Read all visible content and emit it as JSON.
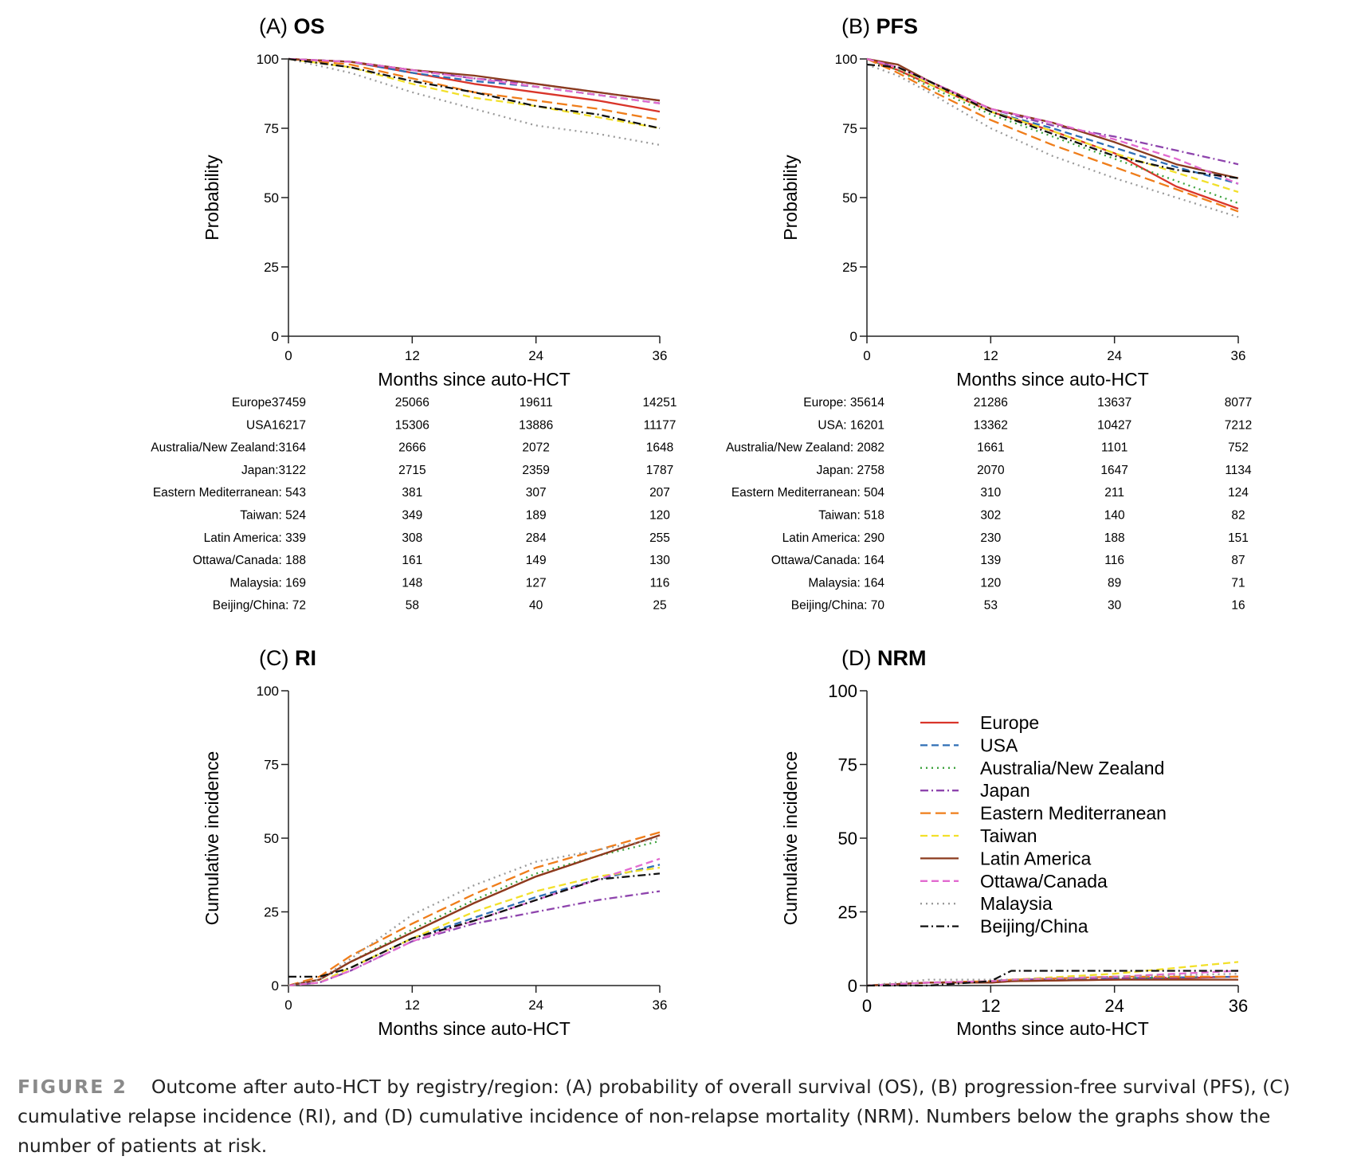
{
  "series_styles": [
    {
      "name": "Europe",
      "color": "#d9352a",
      "dash": ""
    },
    {
      "name": "USA",
      "color": "#2f6fb5",
      "dash": "9,5"
    },
    {
      "name": "Australia/New Zealand",
      "color": "#3ea33e",
      "dash": "2,5"
    },
    {
      "name": "Japan",
      "color": "#8e44ad",
      "dash": "10,4,2,4"
    },
    {
      "name": "Eastern Mediterranean",
      "color": "#ef7d1a",
      "dash": "13,6"
    },
    {
      "name": "Taiwan",
      "color": "#f2e02a",
      "dash": "9,5"
    },
    {
      "name": "Latin America",
      "color": "#8b3b1e",
      "dash": ""
    },
    {
      "name": "Ottawa/Canada",
      "color": "#e26ad0",
      "dash": "9,5"
    },
    {
      "name": "Malaysia",
      "color": "#9a9a9a",
      "dash": "2,5"
    },
    {
      "name": "Beijing/China",
      "color": "#111111",
      "dash": "10,4,2,4"
    }
  ],
  "chart_data": [
    {
      "panel": "A",
      "type": "line",
      "title_prefix": "(A)",
      "title": "OS",
      "xlabel": "Months since auto-HCT",
      "ylabel": "Probability",
      "xlim": [
        0,
        36
      ],
      "ylim": [
        0,
        100
      ],
      "xticks": [
        0,
        12,
        24,
        36
      ],
      "yticks": [
        0,
        25,
        50,
        75,
        100
      ],
      "x": [
        0,
        6,
        12,
        18,
        24,
        30,
        36
      ],
      "series": [
        {
          "name": "Europe",
          "values": [
            100,
            99,
            95,
            91,
            88,
            85,
            81
          ]
        },
        {
          "name": "USA",
          "values": [
            100,
            99,
            95,
            92,
            90,
            87,
            84
          ]
        },
        {
          "name": "Australia/New Zealand",
          "values": [
            100,
            99,
            96,
            93,
            90,
            87,
            84
          ]
        },
        {
          "name": "Japan",
          "values": [
            100,
            99,
            96,
            93,
            91,
            88,
            85
          ]
        },
        {
          "name": "Eastern Mediterranean",
          "values": [
            100,
            98,
            93,
            88,
            85,
            82,
            78
          ]
        },
        {
          "name": "Taiwan",
          "values": [
            100,
            97,
            91,
            86,
            83,
            79,
            75
          ]
        },
        {
          "name": "Latin America",
          "values": [
            100,
            99,
            96,
            94,
            91,
            88,
            85
          ]
        },
        {
          "name": "Ottawa/Canada",
          "values": [
            100,
            99,
            96,
            93,
            90,
            87,
            84
          ]
        },
        {
          "name": "Malaysia",
          "values": [
            100,
            95,
            88,
            82,
            76,
            73,
            69
          ]
        },
        {
          "name": "Beijing/China",
          "values": [
            100,
            97,
            92,
            88,
            83,
            80,
            75
          ]
        }
      ],
      "at_risk": {
        "labels": [
          "Europe37459",
          "USA16217",
          "Australia/New Zealand:3164",
          "Japan:3122",
          "Eastern Mediterranean: 543",
          "Taiwan: 524",
          "Latin America: 339",
          "Ottawa/Canada: 188",
          "Malaysia: 169",
          "Beijing/China:  72"
        ],
        "m12": [
          "25066",
          "15306",
          "2666",
          "2715",
          "381",
          "349",
          "308",
          "161",
          "148",
          "58"
        ],
        "m24": [
          "19611",
          "13886",
          "2072",
          "2359",
          "307",
          "189",
          "284",
          "149",
          "127",
          "40"
        ],
        "m36": [
          "14251",
          "11177",
          "1648",
          "1787",
          "207",
          "120",
          "255",
          "130",
          "116",
          "25"
        ]
      }
    },
    {
      "panel": "B",
      "type": "line",
      "title_prefix": "(B)",
      "title": "PFS",
      "xlabel": "Months since auto-HCT",
      "ylabel": "Probability",
      "xlim": [
        0,
        36
      ],
      "ylim": [
        0,
        100
      ],
      "xticks": [
        0,
        12,
        24,
        36
      ],
      "yticks": [
        0,
        25,
        50,
        75,
        100
      ],
      "x": [
        0,
        3,
        6,
        12,
        18,
        24,
        30,
        36
      ],
      "series": [
        {
          "name": "Europe",
          "values": [
            100,
            96,
            91,
            81,
            74,
            66,
            54,
            46
          ]
        },
        {
          "name": "USA",
          "values": [
            100,
            97,
            91,
            81,
            75,
            68,
            61,
            55
          ]
        },
        {
          "name": "Australia/New Zealand",
          "values": [
            100,
            96,
            90,
            80,
            72,
            64,
            56,
            48
          ]
        },
        {
          "name": "Japan",
          "values": [
            100,
            97,
            92,
            82,
            76,
            72,
            67,
            62
          ]
        },
        {
          "name": "Eastern Mediterranean",
          "values": [
            100,
            95,
            89,
            78,
            69,
            61,
            53,
            45
          ]
        },
        {
          "name": "Taiwan",
          "values": [
            100,
            97,
            91,
            81,
            74,
            66,
            59,
            52
          ]
        },
        {
          "name": "Latin America",
          "values": [
            100,
            98,
            92,
            82,
            77,
            70,
            62,
            57
          ]
        },
        {
          "name": "Ottawa/Canada",
          "values": [
            100,
            97,
            92,
            82,
            77,
            71,
            64,
            55
          ]
        },
        {
          "name": "Malaysia",
          "values": [
            98,
            94,
            88,
            75,
            65,
            57,
            50,
            43
          ]
        },
        {
          "name": "Beijing/China",
          "values": [
            98,
            97,
            92,
            81,
            73,
            65,
            60,
            57
          ]
        }
      ],
      "at_risk": {
        "labels": [
          "Europe: 35614",
          "USA: 16201",
          "Australia/New Zealand: 2082",
          "Japan: 2758",
          "Eastern Mediterranean: 504",
          "Taiwan: 518",
          "Latin America: 290",
          "Ottawa/Canada: 164",
          "Malaysia: 164",
          "Beijing/China: 70"
        ],
        "m12": [
          "21286",
          "13362",
          "1661",
          "2070",
          "310",
          "302",
          "230",
          "139",
          "120",
          "53"
        ],
        "m24": [
          "13637",
          "10427",
          "1101",
          "1647",
          "211",
          "140",
          "188",
          "116",
          "89",
          "30"
        ],
        "m36": [
          "8077",
          "7212",
          "752",
          "1134",
          "124",
          "82",
          "151",
          "87",
          "71",
          "16"
        ]
      }
    },
    {
      "panel": "C",
      "type": "line",
      "title_prefix": "(C)",
      "title": "RI",
      "xlabel": "Months since auto-HCT",
      "ylabel": "Cumulative incidence",
      "xlim": [
        0,
        36
      ],
      "ylim": [
        0,
        100
      ],
      "xticks": [
        0,
        12,
        24,
        36
      ],
      "yticks": [
        0,
        25,
        50,
        75,
        100
      ],
      "x": [
        0,
        3,
        6,
        12,
        18,
        24,
        30,
        36
      ],
      "series": [
        {
          "name": "Europe",
          "values": [
            0,
            2,
            8,
            18,
            28,
            37,
            44,
            51
          ]
        },
        {
          "name": "USA",
          "values": [
            0,
            1,
            6,
            16,
            23,
            30,
            36,
            41
          ]
        },
        {
          "name": "Australia/New Zealand",
          "values": [
            0,
            2,
            8,
            19,
            29,
            38,
            44,
            49
          ]
        },
        {
          "name": "Japan",
          "values": [
            0,
            1,
            5,
            15,
            21,
            25,
            29,
            32
          ]
        },
        {
          "name": "Eastern Mediterranean",
          "values": [
            0,
            3,
            10,
            21,
            31,
            40,
            46,
            52
          ]
        },
        {
          "name": "Taiwan",
          "values": [
            0,
            1,
            6,
            16,
            25,
            32,
            37,
            40
          ]
        },
        {
          "name": "Latin America",
          "values": [
            0,
            2,
            8,
            18,
            28,
            37,
            44,
            51
          ]
        },
        {
          "name": "Ottawa/Canada",
          "values": [
            0,
            1,
            5,
            15,
            22,
            29,
            36,
            43
          ]
        },
        {
          "name": "Malaysia",
          "values": [
            0,
            2,
            9,
            24,
            34,
            42,
            46,
            50
          ]
        },
        {
          "name": "Beijing/China",
          "values": [
            3,
            3,
            6,
            16,
            22,
            29,
            36,
            38
          ]
        }
      ]
    },
    {
      "panel": "D",
      "type": "line",
      "title_prefix": "(D)",
      "title": "NRM",
      "xlabel": "Months since auto-HCT",
      "ylabel": "Cumulative incidence",
      "xlim": [
        0,
        36
      ],
      "ylim": [
        0,
        100
      ],
      "xticks": [
        0,
        12,
        24,
        36
      ],
      "yticks": [
        0,
        25,
        50,
        75,
        100
      ],
      "x": [
        0,
        6,
        12,
        14,
        24,
        36
      ],
      "series": [
        {
          "name": "Europe",
          "values": [
            0,
            1,
            1,
            1.5,
            2,
            3
          ]
        },
        {
          "name": "USA",
          "values": [
            0,
            1,
            1.5,
            2,
            2.5,
            3
          ]
        },
        {
          "name": "Australia/New Zealand",
          "values": [
            0,
            1,
            1.5,
            2,
            2.5,
            3
          ]
        },
        {
          "name": "Japan",
          "values": [
            0,
            1,
            1.5,
            2,
            2.5,
            3
          ]
        },
        {
          "name": "Eastern Mediterranean",
          "values": [
            0,
            1,
            1.5,
            2,
            3,
            3
          ]
        },
        {
          "name": "Taiwan",
          "values": [
            0,
            1,
            1.5,
            2,
            4,
            8
          ]
        },
        {
          "name": "Latin America",
          "values": [
            0,
            1,
            1,
            1.5,
            2,
            2
          ]
        },
        {
          "name": "Ottawa/Canada",
          "values": [
            0,
            1,
            1.5,
            2,
            3,
            5
          ]
        },
        {
          "name": "Malaysia",
          "values": [
            0,
            2,
            2,
            2,
            3,
            4
          ]
        },
        {
          "name": "Beijing/China",
          "values": [
            0,
            0,
            1.5,
            5,
            5,
            5
          ]
        }
      ],
      "legend": {
        "position": "top-left",
        "entries": [
          "Europe",
          "USA",
          "Australia/New Zealand",
          "Japan",
          "Eastern Mediterranean",
          "Taiwan",
          "Latin America",
          "Ottawa/Canada",
          "Malaysia",
          "Beijing/China"
        ]
      }
    }
  ],
  "caption": {
    "label": "FIGURE 2",
    "text": "Outcome after auto-HCT by registry/region: (A) probability of overall survival (OS), (B) progression-free survival (PFS), (C) cumulative relapse incidence (RI), and (D) cumulative incidence of non-relapse mortality (NRM). Numbers below the graphs show the number of patients at risk."
  }
}
